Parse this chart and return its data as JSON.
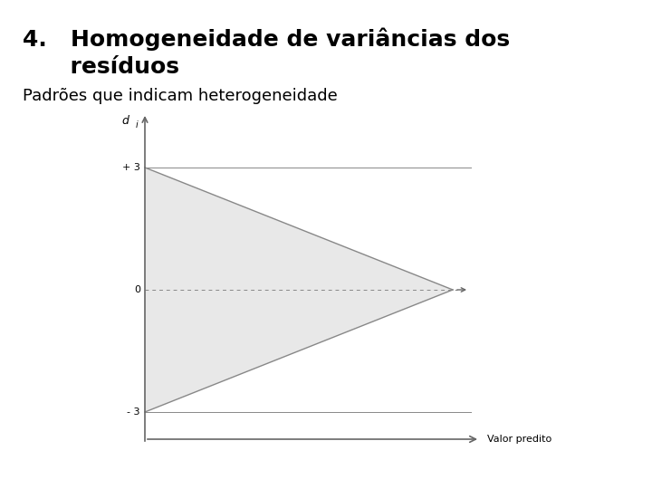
{
  "title_line1": "4.   Homogeneidade de variâncias dos",
  "title_line2": "      resíduos",
  "subtitle": "Padrões que indicam heterogeneidade",
  "title_fontsize": 18,
  "subtitle_fontsize": 13,
  "diagram_label": "d",
  "diagram_label_sub": "i",
  "xlabel_text": "Valor predito",
  "y_plus3_label": "+ 3",
  "y_zero_label": "0",
  "y_minus3_label": "- 3",
  "bg_color": "#ffffff",
  "line_color": "#888888",
  "fill_color": "#dddddd",
  "dashed_color": "#888888",
  "arrow_color": "#666666",
  "text_color": "#000000"
}
